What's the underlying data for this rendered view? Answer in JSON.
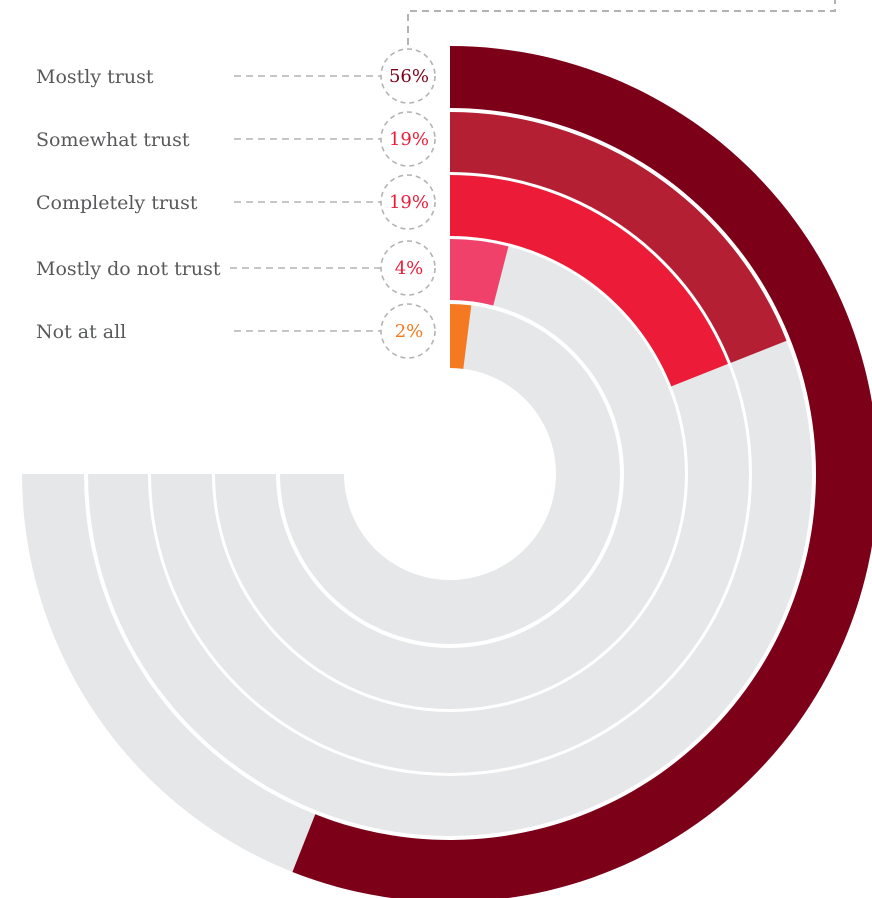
{
  "chart_data": {
    "type": "radial-bar",
    "categories": [
      "Mostly trust",
      "Somewhat trust",
      "Completely trust",
      "Mostly do not trust",
      "Not at all"
    ],
    "values": [
      56,
      19,
      19,
      4,
      2
    ],
    "value_labels": [
      "56%",
      "19%",
      "19%",
      "4%",
      "2%"
    ],
    "unit": "%",
    "max_value": 100,
    "track_extent_percent": 75,
    "colors": [
      "#7d0019",
      "#b51f34",
      "#ec1c38",
      "#f0416a",
      "#f47920"
    ],
    "track_color": "#e6e7e8",
    "label_color": "#58595b",
    "connector_color": "#b3b3b3"
  }
}
